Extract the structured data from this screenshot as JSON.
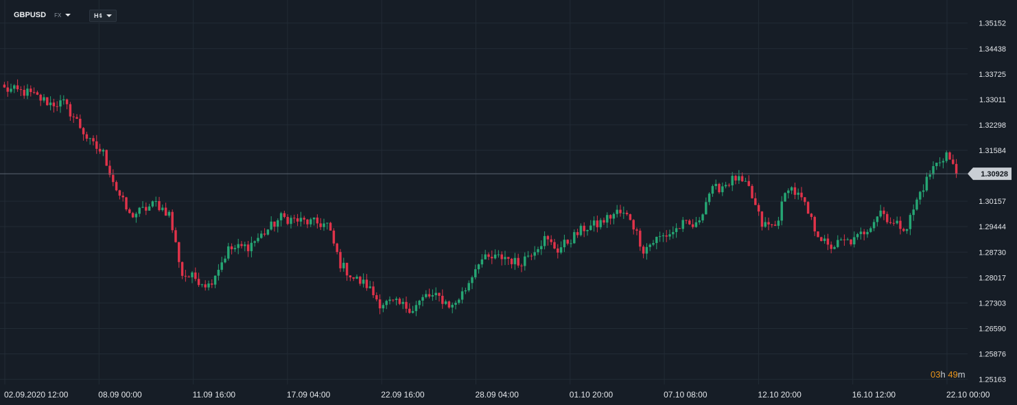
{
  "toolbar": {
    "symbol": "GBPUSD",
    "symbol_type": "FX",
    "timeframe": "H4"
  },
  "colors": {
    "background": "#161d26",
    "up": "#26a674",
    "down": "#e0334a",
    "grid": "#222b35",
    "price_line": "#5b6570"
  },
  "current_price": "1.30928",
  "countdown": {
    "hours": "03",
    "h": "h",
    "minutes": "49",
    "m": "m"
  },
  "chart_data": {
    "type": "candlestick",
    "symbol": "GBPUSD",
    "timeframe": "H4",
    "y_ticks": [
      1.35152,
      1.34438,
      1.33725,
      1.33011,
      1.32298,
      1.31584,
      1.30928,
      1.30157,
      1.29444,
      1.2873,
      1.28017,
      1.27303,
      1.2659,
      1.25876,
      1.25163
    ],
    "y_tick_labels": [
      "1.35152",
      "1.34438",
      "1.33725",
      "1.33011",
      "1.32298",
      "1.31584",
      "1.30928",
      "1.30157",
      "1.29444",
      "1.28730",
      "1.28017",
      "1.27303",
      "1.26590",
      "1.25876",
      "1.25163"
    ],
    "ylim": [
      1.2502,
      1.358
    ],
    "x_labels": [
      "02.09.2020  12:00",
      "08.09  00:00",
      "11.09  16:00",
      "17.09  04:00",
      "22.09  16:00",
      "28.09  04:00",
      "01.10  20:00",
      "07.10  08:00",
      "12.10  20:00",
      "16.10  12:00",
      "22.10  00:00"
    ],
    "anchors": [
      [
        0,
        1.333
      ],
      [
        7,
        1.332
      ],
      [
        14,
        1.329
      ],
      [
        18,
        1.329
      ],
      [
        22,
        1.324
      ],
      [
        26,
        1.318
      ],
      [
        30,
        1.315
      ],
      [
        34,
        1.305
      ],
      [
        38,
        1.2975
      ],
      [
        42,
        1.299
      ],
      [
        46,
        1.301
      ],
      [
        50,
        1.298
      ],
      [
        54,
        1.281
      ],
      [
        58,
        1.28
      ],
      [
        62,
        1.278
      ],
      [
        68,
        1.288
      ],
      [
        74,
        1.289
      ],
      [
        78,
        1.292
      ],
      [
        84,
        1.297
      ],
      [
        90,
        1.296
      ],
      [
        94,
        1.2955
      ],
      [
        98,
        1.295
      ],
      [
        102,
        1.284
      ],
      [
        106,
        1.28
      ],
      [
        110,
        1.278
      ],
      [
        114,
        1.273
      ],
      [
        118,
        1.273
      ],
      [
        124,
        1.2715
      ],
      [
        128,
        1.275
      ],
      [
        132,
        1.2745
      ],
      [
        136,
        1.272
      ],
      [
        140,
        1.277
      ],
      [
        144,
        1.285
      ],
      [
        148,
        1.2855
      ],
      [
        152,
        1.286
      ],
      [
        156,
        1.284
      ],
      [
        160,
        1.2875
      ],
      [
        164,
        1.291
      ],
      [
        168,
        1.288
      ],
      [
        172,
        1.291
      ],
      [
        176,
        1.294
      ],
      [
        180,
        1.295
      ],
      [
        186,
        1.2985
      ],
      [
        190,
        1.297
      ],
      [
        194,
        1.288
      ],
      [
        198,
        1.291
      ],
      [
        202,
        1.2925
      ],
      [
        206,
        1.295
      ],
      [
        210,
        1.2945
      ],
      [
        214,
        1.304
      ],
      [
        218,
        1.306
      ],
      [
        222,
        1.308
      ],
      [
        226,
        1.305
      ],
      [
        230,
        1.295
      ],
      [
        234,
        1.2945
      ],
      [
        238,
        1.306
      ],
      [
        242,
        1.302
      ],
      [
        246,
        1.294
      ],
      [
        250,
        1.2885
      ],
      [
        254,
        1.29
      ],
      [
        258,
        1.2905
      ],
      [
        262,
        1.294
      ],
      [
        266,
        1.299
      ],
      [
        270,
        1.295
      ],
      [
        274,
        1.2945
      ],
      [
        278,
        1.304
      ],
      [
        282,
        1.311
      ],
      [
        286,
        1.315
      ],
      [
        289,
        1.3093
      ]
    ]
  }
}
